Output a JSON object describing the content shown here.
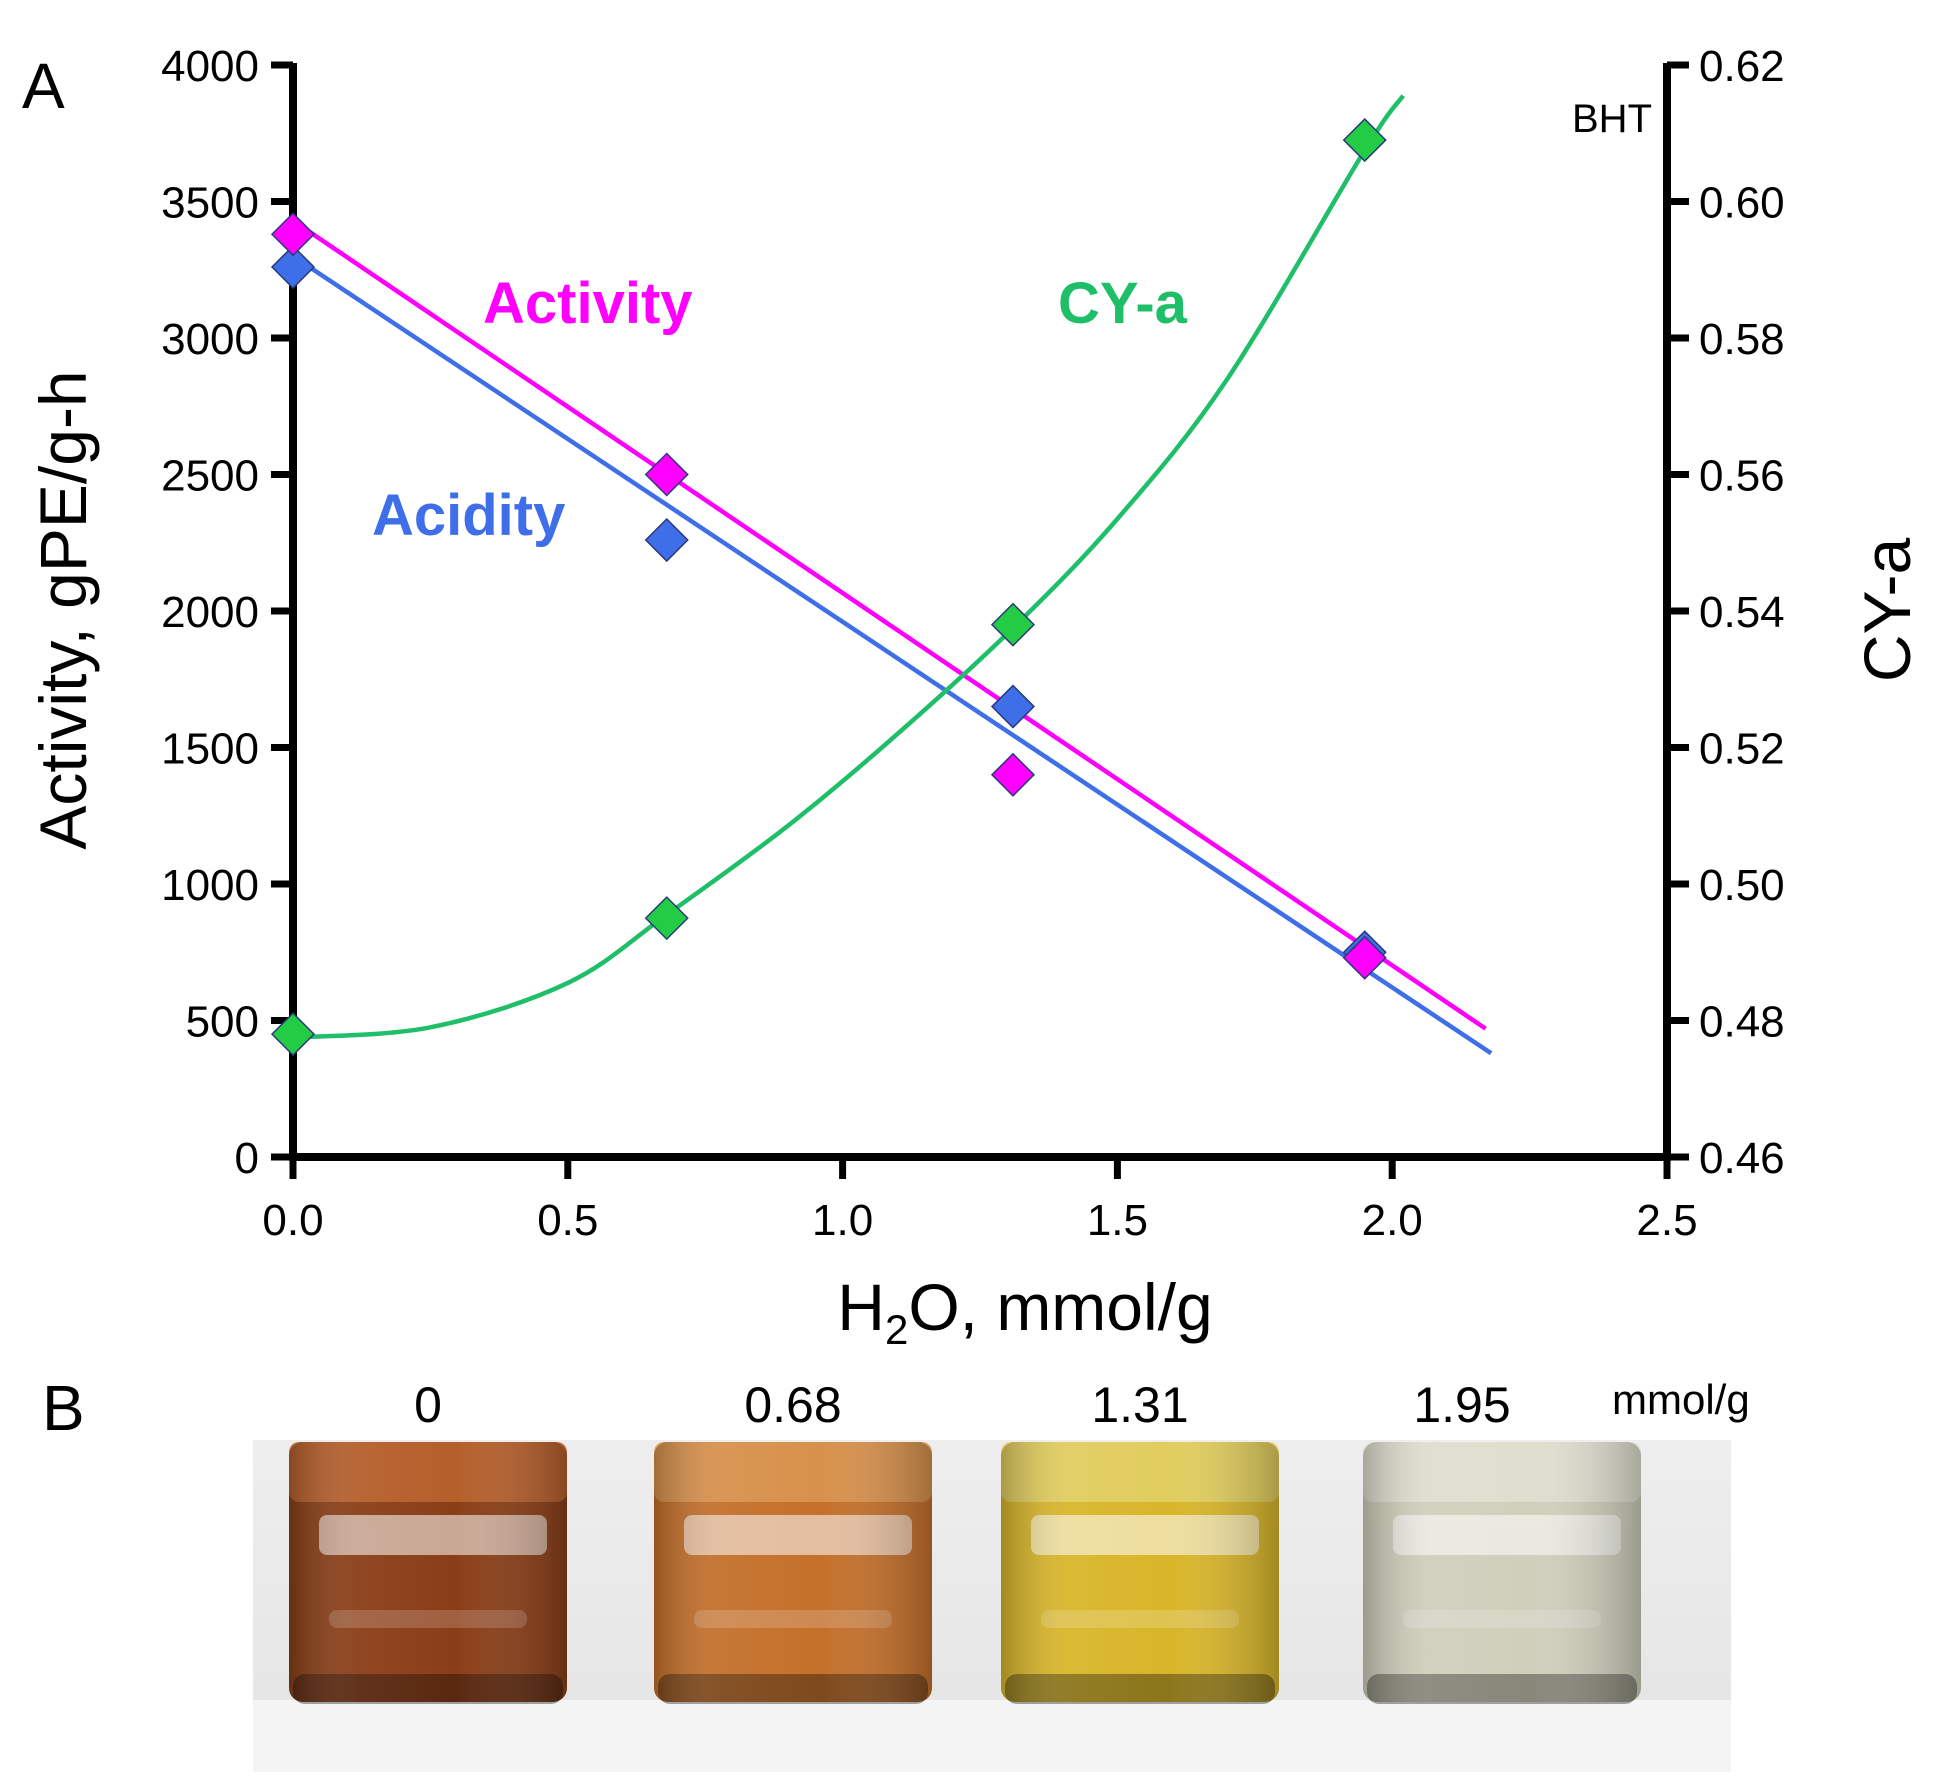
{
  "panel_a_letter": "A",
  "panel_b_letter": "B",
  "chart_data": {
    "type": "scatter",
    "corner_label": "BHT",
    "xlabel_main": "H",
    "xlabel_sub": "2",
    "xlabel_rest": "O, mmol/g",
    "ylabel": "Activity,  gPE/g-h",
    "y2label": "CY-a",
    "xlim": [
      0,
      2.5
    ],
    "ylim": [
      0,
      4000
    ],
    "y2lim": [
      0.46,
      0.62
    ],
    "xticks": [
      0.0,
      0.5,
      1.0,
      1.5,
      2.0,
      2.5
    ],
    "xtick_labels": [
      "0.0",
      "0.5",
      "1.0",
      "1.5",
      "2.0",
      "2.5"
    ],
    "yticks": [
      0,
      500,
      1000,
      1500,
      2000,
      2500,
      3000,
      3500,
      4000
    ],
    "ytick_labels": [
      "0",
      "500",
      "1000",
      "1500",
      "2000",
      "2500",
      "3000",
      "3500",
      "4000"
    ],
    "y2ticks": [
      0.46,
      0.48,
      0.5,
      0.52,
      0.54,
      0.56,
      0.58,
      0.6,
      0.62
    ],
    "y2tick_labels": [
      "0.46",
      "0.48",
      "0.50",
      "0.52",
      "0.54",
      "0.56",
      "0.58",
      "0.60",
      "0.62"
    ],
    "grid": false,
    "series": [
      {
        "name": "Activity",
        "color": "#ff00ff",
        "axis": "left",
        "x": [
          0,
          0.68,
          1.31,
          1.95
        ],
        "y": [
          3380,
          2500,
          1400,
          730
        ],
        "fit": "linear",
        "fit_line": {
          "x": [
            0,
            2.17
          ],
          "y": [
            3430,
            470
          ]
        }
      },
      {
        "name": "Acidity",
        "color": "#3f6fe8",
        "axis": "left",
        "x": [
          0,
          0.68,
          1.31,
          1.95
        ],
        "y": [
          3260,
          2260,
          1650,
          750
        ],
        "fit": "linear",
        "fit_line": {
          "x": [
            0,
            2.18
          ],
          "y": [
            3300,
            380
          ]
        }
      },
      {
        "name": "CY-a",
        "color": "#22cc44",
        "line_color": "#1fbf6a",
        "axis": "right",
        "x": [
          0,
          0.68,
          1.31,
          1.95
        ],
        "y": [
          0.478,
          0.495,
          0.538,
          0.609
        ],
        "fit": "curve",
        "fit_line": {
          "x": [
            0,
            0.25,
            0.5,
            0.68,
            0.9,
            1.1,
            1.31,
            1.5,
            1.7,
            1.95,
            2.02
          ],
          "y": [
            0.4775,
            0.479,
            0.4855,
            0.4955,
            0.5085,
            0.522,
            0.5375,
            0.5535,
            0.574,
            0.6075,
            0.6155
          ]
        }
      }
    ],
    "series_label_colors": {
      "Activity": "#ff00ff",
      "Acidity": "#3f6fe8",
      "CY-a": "#1fbf6a"
    }
  },
  "panel_b": {
    "vials": [
      {
        "label": "0",
        "liquid_color": "#8a3e17",
        "top_color": "#b9632e"
      },
      {
        "label": "0.68",
        "liquid_color": "#c4702a",
        "top_color": "#d99550"
      },
      {
        "label": "1.31",
        "liquid_color": "#d8b62a",
        "top_color": "#e2cf64"
      },
      {
        "label": "1.95",
        "liquid_color": "#cfcfbc",
        "top_color": "#e0e0d2"
      }
    ],
    "unit": "mmol/g"
  }
}
